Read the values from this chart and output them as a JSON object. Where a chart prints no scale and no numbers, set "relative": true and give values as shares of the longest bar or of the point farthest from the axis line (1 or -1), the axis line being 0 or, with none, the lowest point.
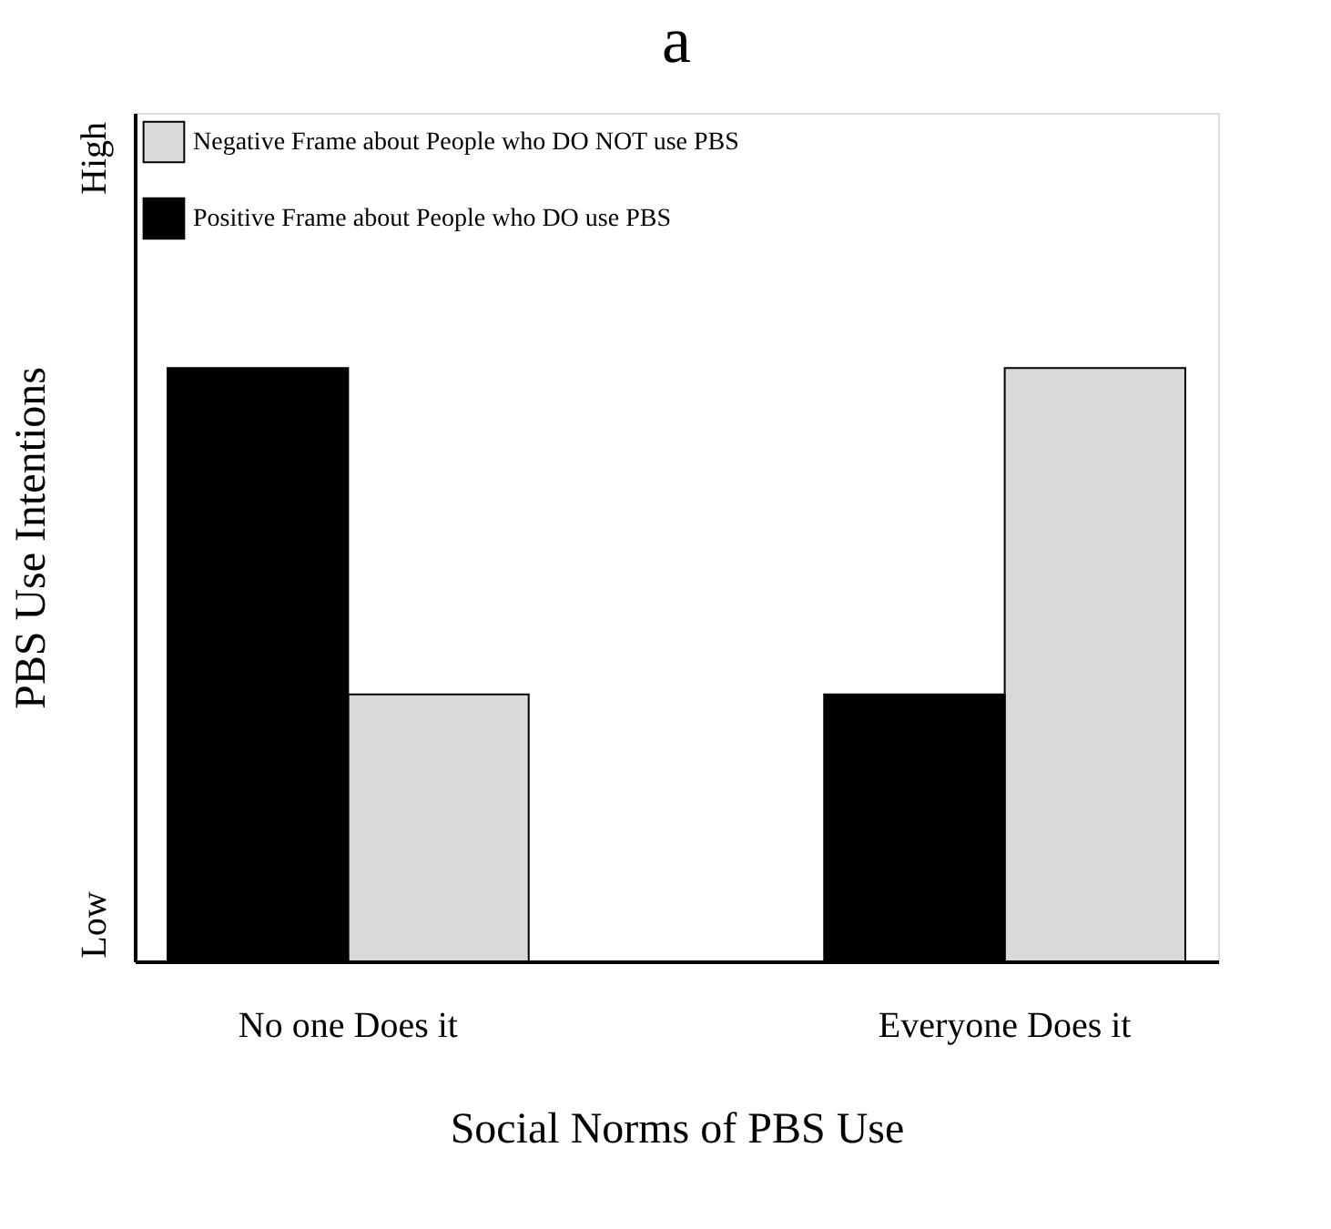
{
  "chart_data": {
    "type": "bar",
    "title": "a",
    "xlabel": "Social Norms of PBS Use",
    "ylabel": "PBS Use Intentions",
    "categories": [
      "No one Does it",
      "Everyone Does it"
    ],
    "relative": true,
    "legend": "top left",
    "grid": false,
    "annotations": [
      "Low",
      "High"
    ],
    "series": [
      {
        "name": "Negative Frame about People who DO NOT use PBS",
        "color": "#d9d9d9",
        "values": [
          0.45,
          1
        ]
      },
      {
        "name": "Positive Frame about People who DO use PBS",
        "color": "#000000",
        "values": [
          1,
          0.45
        ]
      }
    ]
  }
}
